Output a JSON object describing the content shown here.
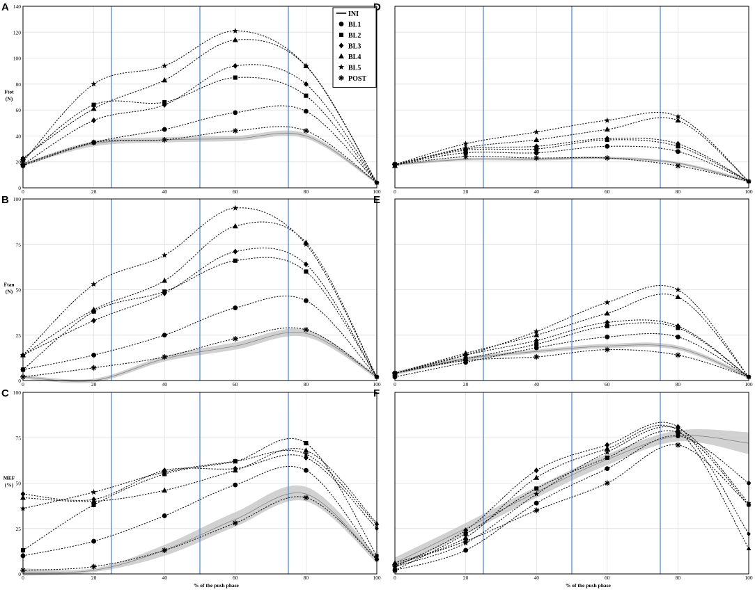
{
  "style": {
    "line_color": "#111111",
    "band_color": "#c9c9c9",
    "phase_line_color": "#4a7fd4",
    "grid_color": "#dcdcdc"
  },
  "legend": [
    {
      "key": "INI",
      "label": "INI",
      "marker": "line"
    },
    {
      "key": "BL1",
      "label": "BL1",
      "marker": "circle"
    },
    {
      "key": "BL2",
      "label": "BL2",
      "marker": "square"
    },
    {
      "key": "BL3",
      "label": "BL3",
      "marker": "diamond"
    },
    {
      "key": "BL4",
      "label": "BL4",
      "marker": "triangle"
    },
    {
      "key": "BL5",
      "label": "BL5",
      "marker": "star"
    },
    {
      "key": "POST",
      "label": "POST",
      "marker": "asterisk"
    }
  ],
  "chart_data": [
    {
      "panel": "A",
      "type": "line",
      "ylabel": "Ftot\n(N)",
      "xlabel": "",
      "xlim": [
        0,
        100
      ],
      "ylim": [
        0,
        140
      ],
      "xticks": [
        0,
        20,
        40,
        60,
        80,
        100
      ],
      "yticks": [
        0,
        20,
        40,
        60,
        80,
        100,
        120,
        140
      ],
      "phase_lines": [
        25,
        50,
        75
      ],
      "grid": true,
      "x": [
        0,
        20,
        40,
        60,
        80,
        100
      ],
      "band": {
        "mean": [
          18,
          34,
          37,
          38,
          40,
          4
        ],
        "sd": [
          1,
          2,
          2,
          2,
          2,
          1
        ]
      },
      "series": [
        {
          "name": "BL1",
          "marker": "circle",
          "values": [
            17,
            35,
            45,
            58,
            59,
            4
          ]
        },
        {
          "name": "BL2",
          "marker": "square",
          "values": [
            22,
            64,
            66,
            85,
            71,
            4
          ]
        },
        {
          "name": "BL3",
          "marker": "diamond",
          "values": [
            18,
            52,
            64,
            94,
            80,
            4
          ]
        },
        {
          "name": "BL4",
          "marker": "triangle",
          "values": [
            23,
            61,
            83,
            114,
            94,
            4
          ]
        },
        {
          "name": "BL5",
          "marker": "star",
          "values": [
            20,
            80,
            94,
            121,
            94,
            4
          ]
        },
        {
          "name": "POST",
          "marker": "asterisk",
          "values": [
            18,
            35,
            37,
            44,
            44,
            4
          ]
        }
      ]
    },
    {
      "panel": "D",
      "type": "line",
      "ylabel": "",
      "xlabel": "",
      "xlim": [
        0,
        100
      ],
      "ylim": [
        0,
        140
      ],
      "xticks": [
        0,
        20,
        40,
        60,
        80,
        100
      ],
      "yticks": [],
      "phase_lines": [
        25,
        50,
        75
      ],
      "grid": true,
      "x": [
        0,
        20,
        40,
        60,
        80,
        100
      ],
      "band": {
        "mean": [
          18,
          22,
          22,
          23,
          19,
          5
        ],
        "sd": [
          1,
          1,
          1,
          1,
          1,
          1
        ]
      },
      "series": [
        {
          "name": "BL1",
          "marker": "circle",
          "values": [
            18,
            27,
            27,
            32,
            28,
            5
          ]
        },
        {
          "name": "BL2",
          "marker": "square",
          "values": [
            18,
            29,
            30,
            37,
            32,
            5
          ]
        },
        {
          "name": "BL3",
          "marker": "diamond",
          "values": [
            18,
            30,
            32,
            38,
            34,
            5
          ]
        },
        {
          "name": "BL4",
          "marker": "triangle",
          "values": [
            17,
            31,
            37,
            45,
            52,
            5
          ]
        },
        {
          "name": "BL5",
          "marker": "star",
          "values": [
            18,
            34,
            43,
            52,
            55,
            5
          ]
        },
        {
          "name": "POST",
          "marker": "asterisk",
          "values": [
            18,
            24,
            23,
            23,
            17,
            5
          ]
        }
      ]
    },
    {
      "panel": "B",
      "type": "line",
      "ylabel": "Ftan\n(N)",
      "xlabel": "",
      "xlim": [
        0,
        100
      ],
      "ylim": [
        0,
        100
      ],
      "xticks": [
        0,
        20,
        40,
        60,
        80,
        100
      ],
      "yticks": [
        0,
        25,
        50,
        75,
        100
      ],
      "phase_lines": [
        25,
        50,
        75
      ],
      "grid": true,
      "x": [
        0,
        20,
        40,
        60,
        80,
        100
      ],
      "band": {
        "mean": [
          2,
          0,
          12,
          19,
          26,
          2
        ],
        "sd": [
          1,
          1,
          1.5,
          2,
          2,
          1
        ]
      },
      "series": [
        {
          "name": "BL1",
          "marker": "circle",
          "values": [
            6,
            14,
            25,
            40,
            44,
            2
          ]
        },
        {
          "name": "BL2",
          "marker": "square",
          "values": [
            6,
            38,
            49,
            66,
            60,
            2
          ]
        },
        {
          "name": "BL3",
          "marker": "diamond",
          "values": [
            14,
            33,
            48,
            71,
            64,
            2
          ]
        },
        {
          "name": "BL4",
          "marker": "triangle",
          "values": [
            14,
            39,
            55,
            85,
            76,
            2
          ]
        },
        {
          "name": "BL5",
          "marker": "star",
          "values": [
            14,
            53,
            69,
            95,
            75,
            2
          ]
        },
        {
          "name": "POST",
          "marker": "asterisk",
          "values": [
            2,
            7,
            13,
            23,
            28,
            2
          ]
        }
      ]
    },
    {
      "panel": "E",
      "type": "line",
      "ylabel": "",
      "xlabel": "",
      "xlim": [
        0,
        100
      ],
      "ylim": [
        0,
        100
      ],
      "xticks": [
        0,
        20,
        40,
        60,
        80,
        100
      ],
      "yticks": [],
      "phase_lines": [
        25,
        50,
        75
      ],
      "grid": true,
      "x": [
        0,
        20,
        40,
        60,
        80,
        100
      ],
      "band": {
        "mean": [
          4,
          12,
          16,
          19,
          18,
          2
        ],
        "sd": [
          1,
          1,
          1,
          1.2,
          1.2,
          1
        ]
      },
      "series": [
        {
          "name": "BL1",
          "marker": "circle",
          "values": [
            2,
            10,
            18,
            24,
            24,
            2
          ]
        },
        {
          "name": "BL2",
          "marker": "square",
          "values": [
            4,
            12,
            20,
            30,
            29,
            2
          ]
        },
        {
          "name": "BL3",
          "marker": "diamond",
          "values": [
            4,
            14,
            22,
            32,
            30,
            2
          ]
        },
        {
          "name": "BL4",
          "marker": "triangle",
          "values": [
            4,
            15,
            25,
            37,
            46,
            2
          ]
        },
        {
          "name": "BL5",
          "marker": "star",
          "values": [
            4,
            14,
            27,
            43,
            50,
            2
          ]
        },
        {
          "name": "POST",
          "marker": "asterisk",
          "values": [
            4,
            11,
            13,
            17,
            14,
            2
          ]
        }
      ]
    },
    {
      "panel": "C",
      "type": "line",
      "ylabel": "MEF\n(%)",
      "xlabel": "% of the push phase",
      "xlim": [
        0,
        100
      ],
      "ylim": [
        0,
        100
      ],
      "xticks": [
        0,
        20,
        40,
        60,
        80,
        100
      ],
      "yticks": [
        0,
        25,
        50,
        75,
        100
      ],
      "phase_lines": [
        25,
        50,
        75
      ],
      "grid": true,
      "x": [
        0,
        20,
        40,
        60,
        80,
        100
      ],
      "band": {
        "mean": [
          1,
          2,
          13,
          30,
          44,
          8
        ],
        "sd": [
          2,
          1,
          3,
          4,
          4,
          2
        ]
      },
      "series": [
        {
          "name": "BL1",
          "marker": "circle",
          "values": [
            10,
            18,
            32,
            49,
            57,
            8
          ]
        },
        {
          "name": "BL2",
          "marker": "square",
          "values": [
            13,
            38,
            55,
            62,
            72,
            10
          ]
        },
        {
          "name": "BL3",
          "marker": "diamond",
          "values": [
            44,
            41,
            57,
            58,
            64,
            25
          ]
        },
        {
          "name": "BL4",
          "marker": "triangle",
          "values": [
            42,
            40,
            46,
            57,
            68,
            28
          ]
        },
        {
          "name": "BL5",
          "marker": "star",
          "values": [
            36,
            45,
            56,
            62,
            66,
            27
          ]
        },
        {
          "name": "POST",
          "marker": "asterisk",
          "values": [
            2,
            4,
            13,
            28,
            42,
            8
          ]
        }
      ]
    },
    {
      "panel": "F",
      "type": "line",
      "ylabel": "",
      "xlabel": "% of the push phase",
      "xlim": [
        0,
        100
      ],
      "ylim": [
        0,
        100
      ],
      "xticks": [
        0,
        20,
        40,
        60,
        80,
        100
      ],
      "yticks": [],
      "phase_lines": [
        25,
        50,
        75
      ],
      "grid": true,
      "x": [
        0,
        20,
        40,
        60,
        80,
        100
      ],
      "band": {
        "mean": [
          6,
          25,
          45,
          63,
          76,
          72
        ],
        "sd": [
          3,
          3,
          3,
          3,
          3,
          6
        ]
      },
      "series": [
        {
          "name": "BL1",
          "marker": "circle",
          "values": [
            2,
            13,
            39,
            58,
            76,
            50
          ]
        },
        {
          "name": "BL2",
          "marker": "square",
          "values": [
            2,
            22,
            47,
            64,
            78,
            38
          ]
        },
        {
          "name": "BL3",
          "marker": "diamond",
          "values": [
            4,
            24,
            57,
            71,
            81,
            22
          ]
        },
        {
          "name": "BL4",
          "marker": "triangle",
          "values": [
            6,
            20,
            53,
            69,
            79,
            14
          ]
        },
        {
          "name": "BL5",
          "marker": "star",
          "values": [
            4,
            17,
            44,
            67,
            80,
            39
          ]
        },
        {
          "name": "POST",
          "marker": "asterisk",
          "values": [
            5,
            18,
            35,
            50,
            71,
            38
          ]
        }
      ]
    }
  ]
}
